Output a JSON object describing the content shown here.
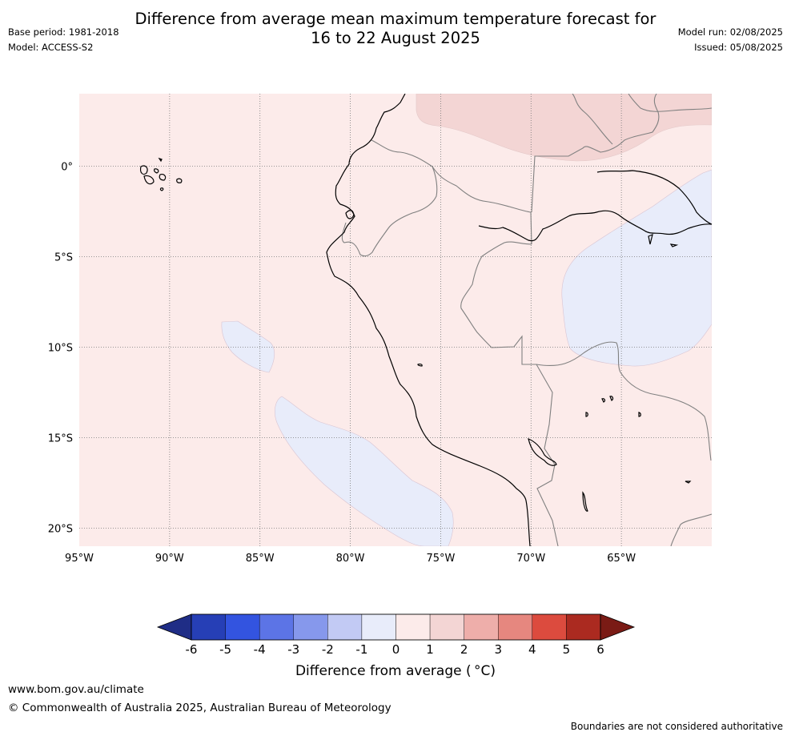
{
  "header": {
    "title_line1": "Difference from average mean maximum temperature forecast for",
    "title_line2": "16 to 22 August 2025",
    "base_period": "Base period: 1981-2018",
    "model": "Model: ACCESS-S2",
    "model_run": "Model run: 02/08/2025",
    "issued": "Issued: 05/08/2025"
  },
  "map": {
    "lon_range": [
      -95,
      -60
    ],
    "lat_range": [
      -21,
      4
    ],
    "lon_ticks": [
      {
        "value": -95,
        "label": "95°W"
      },
      {
        "value": -90,
        "label": "90°W"
      },
      {
        "value": -85,
        "label": "85°W"
      },
      {
        "value": -80,
        "label": "80°W"
      },
      {
        "value": -75,
        "label": "75°W"
      },
      {
        "value": -70,
        "label": "70°W"
      },
      {
        "value": -65,
        "label": "65°W"
      }
    ],
    "lat_ticks": [
      {
        "value": 0,
        "label": "0°"
      },
      {
        "value": -5,
        "label": "5°S"
      },
      {
        "value": -10,
        "label": "10°S"
      },
      {
        "value": -15,
        "label": "15°S"
      },
      {
        "value": -20,
        "label": "20°S"
      }
    ],
    "colors": {
      "background_anomaly_0_to_1": "#fcebea",
      "anomaly_1_to_2": "#f3d5d4",
      "anomaly_minus1_to_0": "#e8ecfa",
      "coastline": "#000000",
      "borders": "#808080",
      "gridlines": "#777777"
    }
  },
  "colorbar": {
    "ticks": [
      "-6",
      "-5",
      "-4",
      "-3",
      "-2",
      "-1",
      "0",
      "1",
      "2",
      "3",
      "4",
      "5",
      "6"
    ],
    "colors": [
      "#1f2d86",
      "#263fb6",
      "#3354e0",
      "#5c74e6",
      "#8698ec",
      "#c2caf4",
      "#e8ecfa",
      "#fcebea",
      "#f3d5d4",
      "#eeaeaa",
      "#e6877f",
      "#dc4b3e",
      "#ab2a20",
      "#7a1b15"
    ],
    "label": "Difference from average ( °C)"
  },
  "footer": {
    "website": "www.bom.gov.au/climate",
    "copyright": "© Commonwealth of Australia 2025, Australian Bureau of Meteorology",
    "disclaimer": "Boundaries are not considered authoritative"
  }
}
